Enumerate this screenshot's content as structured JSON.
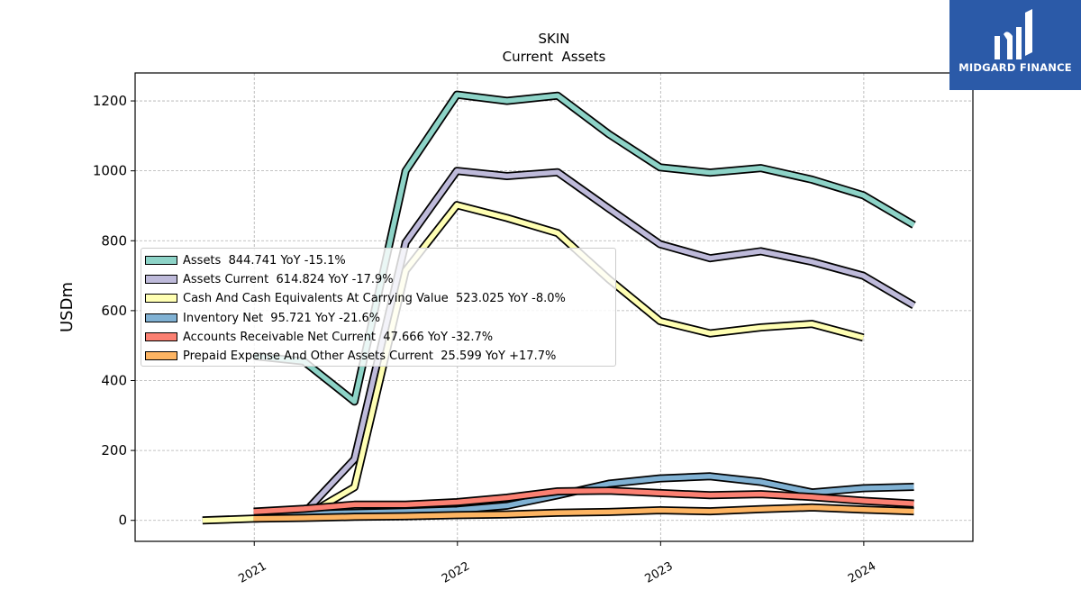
{
  "chart_data": {
    "type": "line",
    "title": "SKIN",
    "subtitle": "Current  Assets",
    "ylabel": "USDm",
    "xlabel": "",
    "ylim": [
      -60,
      1280
    ],
    "xlim": [
      "2020-06-01",
      "2024-07-15"
    ],
    "yticks": [
      0,
      200,
      400,
      600,
      800,
      1000,
      1200
    ],
    "xtick_labels": [
      "2021",
      "2022",
      "2023",
      "2024"
    ],
    "xtick_dates": [
      "2021-01-01",
      "2022-01-01",
      "2023-01-01",
      "2024-01-01"
    ],
    "grid": true,
    "legend_position": "center-left",
    "series": [
      {
        "name": "Assets",
        "legend": "Assets  844.741 YoY -15.1%",
        "color": "#8dd3c7",
        "x": [
          "2020-12-31",
          "2021-03-31",
          "2021-06-30",
          "2021-09-30",
          "2021-12-31",
          "2022-03-31",
          "2022-06-30",
          "2022-09-30",
          "2022-12-31",
          "2023-03-31",
          "2023-06-30",
          "2023-09-30",
          "2023-12-31",
          "2024-03-31"
        ],
        "values": [
          470,
          455,
          340,
          1000,
          1218,
          1200,
          1215,
          1105,
          1010,
          995,
          1008,
          975,
          930,
          845
        ]
      },
      {
        "name": "Assets Current",
        "legend": "Assets Current  614.824 YoY -17.9%",
        "color": "#bebada",
        "x": [
          "2021-03-31",
          "2021-06-30",
          "2021-09-30",
          "2021-12-31",
          "2022-03-31",
          "2022-06-30",
          "2022-09-30",
          "2022-12-31",
          "2023-03-31",
          "2023-06-30",
          "2023-09-30",
          "2023-12-31",
          "2024-03-31"
        ],
        "values": [
          20,
          175,
          795,
          1000,
          985,
          996,
          892,
          790,
          750,
          770,
          740,
          700,
          615
        ]
      },
      {
        "name": "Cash And Cash Equivalents At Carrying Value",
        "legend": "Cash And Cash Equivalents At Carrying Value  523.025 YoY -8.0%",
        "color": "#ffffb3",
        "x": [
          "2020-09-30",
          "2020-12-31",
          "2021-03-31",
          "2021-06-30",
          "2021-09-30",
          "2021-12-31",
          "2022-03-31",
          "2022-06-30",
          "2022-09-30",
          "2022-12-31",
          "2023-03-31",
          "2023-06-30",
          "2023-09-30",
          "2023-12-31"
        ],
        "values": [
          0,
          5,
          10,
          95,
          715,
          902,
          865,
          822,
          690,
          570,
          535,
          552,
          562,
          523
        ]
      },
      {
        "name": "Inventory Net",
        "legend": "Inventory Net  95.721 YoY -21.6%",
        "color": "#80b1d3",
        "x": [
          "2020-12-31",
          "2021-03-31",
          "2021-06-30",
          "2021-09-30",
          "2021-12-31",
          "2022-03-31",
          "2022-06-30",
          "2022-09-30",
          "2022-12-31",
          "2023-03-31",
          "2023-06-30",
          "2023-09-30",
          "2023-12-31",
          "2024-03-31"
        ],
        "values": [
          15,
          18,
          22,
          25,
          30,
          42,
          72,
          105,
          120,
          126,
          110,
          80,
          92,
          96
        ]
      },
      {
        "name": "Accounts Receivable Net Current",
        "legend": "Accounts Receivable Net Current  47.666 YoY -32.7%",
        "color": "#fb8072",
        "x": [
          "2020-12-31",
          "2021-03-31",
          "2021-06-30",
          "2021-09-30",
          "2021-12-31",
          "2022-03-31",
          "2022-06-30",
          "2022-09-30",
          "2022-12-31",
          "2023-03-31",
          "2023-06-30",
          "2023-09-30",
          "2023-12-31",
          "2024-03-31"
        ],
        "values": [
          25,
          33,
          45,
          45,
          52,
          65,
          83,
          85,
          78,
          72,
          75,
          67,
          56,
          48
        ]
      },
      {
        "name": "Prepaid Expense And Other Assets Current",
        "legend": "Prepaid Expense And Other Assets Current  25.599 YoY +17.7%",
        "color": "#fdb462",
        "x": [
          "2020-12-31",
          "2021-03-31",
          "2021-06-30",
          "2021-09-30",
          "2021-12-31",
          "2022-03-31",
          "2022-06-30",
          "2022-09-30",
          "2022-12-31",
          "2023-03-31",
          "2023-06-30",
          "2023-09-30",
          "2023-12-31",
          "2024-03-31"
        ],
        "values": [
          5,
          7,
          10,
          12,
          15,
          17,
          22,
          24,
          29,
          26,
          32,
          37,
          31,
          26
        ]
      }
    ]
  },
  "logo": {
    "text": "MIDGARD FINANCE",
    "background": "#2b5aa8"
  }
}
